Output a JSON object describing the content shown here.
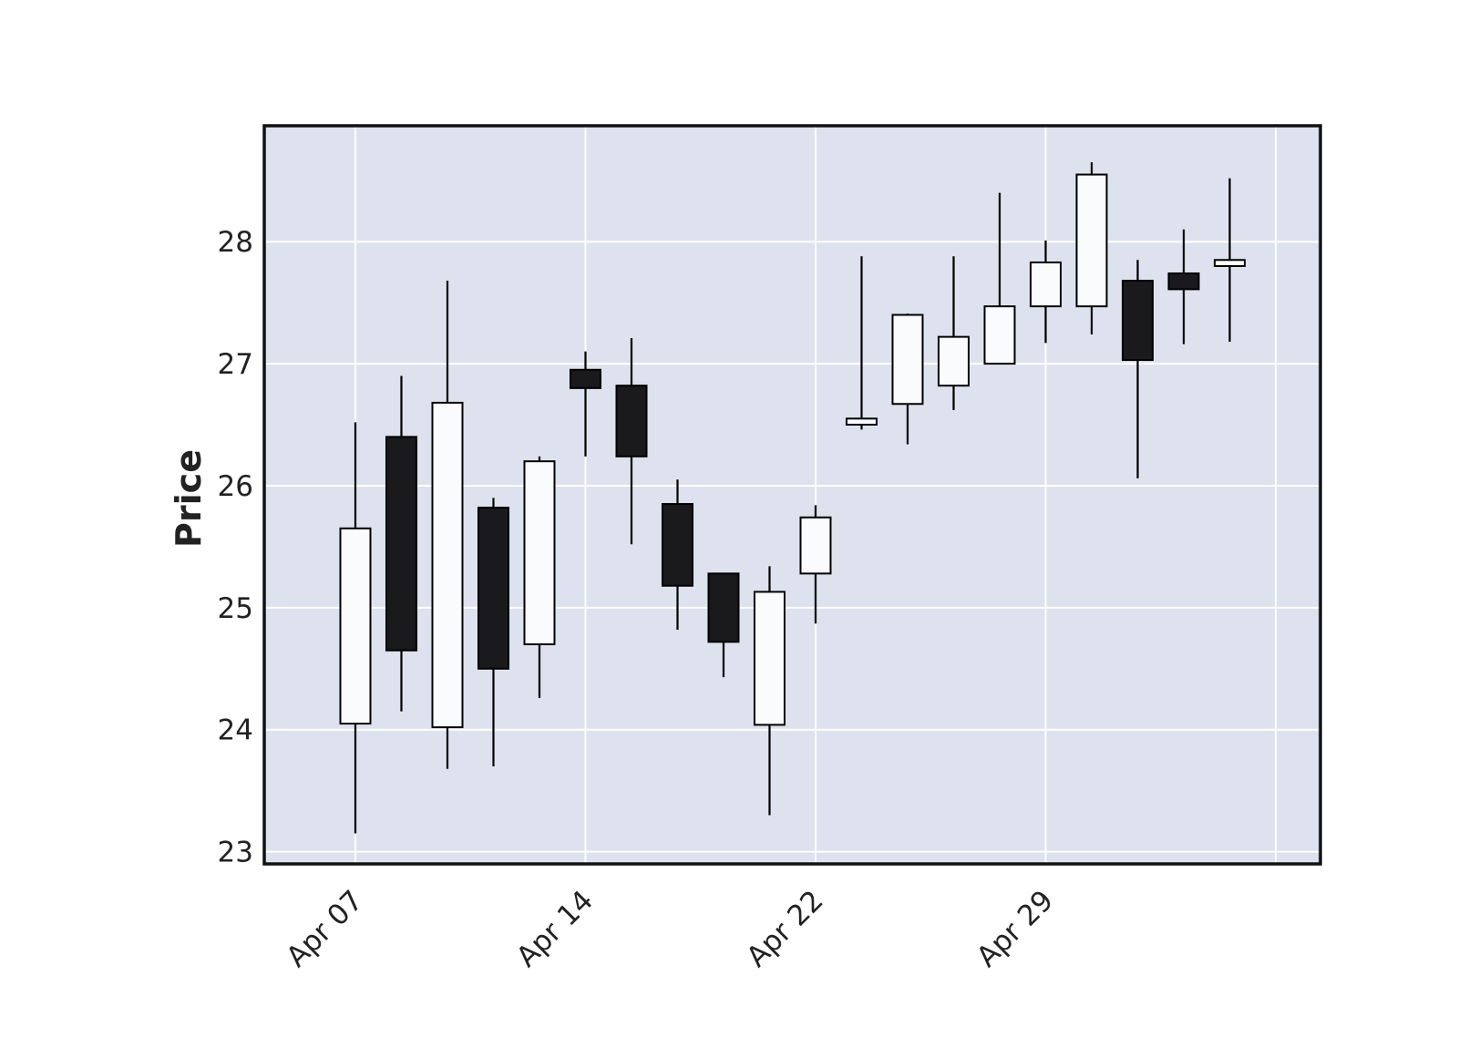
{
  "chart_data": {
    "type": "candlestick",
    "title": "",
    "xlabel": "",
    "ylabel": "Price",
    "ylim": [
      22.9,
      28.95
    ],
    "y_ticks": [
      23,
      24,
      25,
      26,
      27,
      28
    ],
    "x_ticks": [
      "Apr 07",
      "Apr 14",
      "Apr 22",
      "Apr 29"
    ],
    "grid": true,
    "legend": "none",
    "colors": {
      "background": "#dde2ee",
      "grid": "#ffffff",
      "up_fill": "#fafbfd",
      "down_fill": "#1a1a1c",
      "outline": "#000000",
      "text": "#222222"
    },
    "candles": [
      {
        "date": "Apr 07",
        "open": 24.05,
        "high": 26.52,
        "low": 23.15,
        "close": 25.65
      },
      {
        "date": "Apr 08",
        "open": 26.4,
        "high": 26.9,
        "low": 24.15,
        "close": 24.65
      },
      {
        "date": "Apr 09",
        "open": 24.02,
        "high": 27.68,
        "low": 23.68,
        "close": 26.68
      },
      {
        "date": "Apr 10",
        "open": 25.82,
        "high": 25.9,
        "low": 23.7,
        "close": 24.5
      },
      {
        "date": "Apr 11",
        "open": 24.7,
        "high": 26.24,
        "low": 24.26,
        "close": 26.2
      },
      {
        "date": "Apr 14",
        "open": 26.95,
        "high": 27.1,
        "low": 26.24,
        "close": 26.8
      },
      {
        "date": "Apr 15",
        "open": 26.82,
        "high": 27.21,
        "low": 25.52,
        "close": 26.24
      },
      {
        "date": "Apr 16",
        "open": 25.85,
        "high": 26.05,
        "low": 24.82,
        "close": 25.18
      },
      {
        "date": "Apr 17",
        "open": 25.28,
        "high": 25.28,
        "low": 24.43,
        "close": 24.72
      },
      {
        "date": "Apr 18",
        "open": 24.04,
        "high": 25.34,
        "low": 23.3,
        "close": 25.13
      },
      {
        "date": "Apr 22",
        "open": 25.28,
        "high": 25.84,
        "low": 24.87,
        "close": 25.74
      },
      {
        "date": "Apr 23",
        "open": 26.5,
        "high": 27.88,
        "low": 26.46,
        "close": 26.55
      },
      {
        "date": "Apr 24",
        "open": 26.67,
        "high": 27.41,
        "low": 26.34,
        "close": 27.4
      },
      {
        "date": "Apr 25",
        "open": 26.82,
        "high": 27.88,
        "low": 26.62,
        "close": 27.22
      },
      {
        "date": "Apr 28",
        "open": 27.0,
        "high": 28.4,
        "low": 27.0,
        "close": 27.47
      },
      {
        "date": "Apr 29",
        "open": 27.47,
        "high": 28.01,
        "low": 27.17,
        "close": 27.83
      },
      {
        "date": "Apr 30",
        "open": 27.47,
        "high": 28.65,
        "low": 27.24,
        "close": 28.55
      },
      {
        "date": "May 01",
        "open": 27.68,
        "high": 27.85,
        "low": 26.06,
        "close": 27.03
      },
      {
        "date": "May 02",
        "open": 27.74,
        "high": 28.1,
        "low": 27.16,
        "close": 27.61
      },
      {
        "date": "May 05",
        "open": 27.8,
        "high": 28.52,
        "low": 27.18,
        "close": 27.85
      }
    ]
  }
}
